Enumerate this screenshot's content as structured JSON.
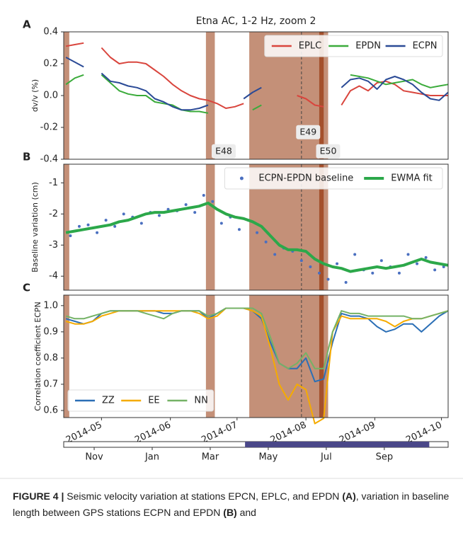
{
  "chart_data": [
    {
      "type": "line",
      "title": "Etna AC, 1-2 Hz, zoom 2",
      "panel": "A",
      "ylabel": "dv/v (%)",
      "xlim": [
        103,
        276
      ],
      "ylim": [
        -0.4,
        0.4
      ],
      "yticks": [
        0.4,
        0.2,
        {
          "value": 0,
          "label": "0.0"
        },
        -0.2,
        -0.4
      ],
      "legend": "upper right",
      "annotations": [
        "E48",
        "E49",
        "E50"
      ],
      "x": [
        104,
        108,
        112,
        116,
        120,
        124,
        128,
        132,
        136,
        140,
        144,
        148,
        152,
        156,
        160,
        164,
        168,
        172,
        176,
        180,
        184,
        188,
        192,
        196,
        200,
        204,
        208,
        212,
        216,
        220,
        224,
        228,
        232,
        236,
        240,
        244,
        248,
        252,
        256,
        260,
        264,
        268,
        272,
        276
      ],
      "series": [
        {
          "name": "EPLC",
          "color": "#d9453d",
          "values": [
            0.31,
            0.32,
            0.33,
            null,
            0.3,
            0.24,
            0.2,
            0.21,
            0.21,
            0.2,
            0.16,
            0.12,
            0.07,
            0.03,
            0.0,
            -0.02,
            -0.03,
            -0.05,
            -0.08,
            -0.07,
            -0.05,
            null,
            null,
            null,
            null,
            null,
            0.0,
            -0.02,
            -0.06,
            -0.07,
            null,
            -0.06,
            0.03,
            0.06,
            0.03,
            0.08,
            0.09,
            0.07,
            0.03,
            0.02,
            0.01,
            0.0,
            0.0,
            0.0
          ]
        },
        {
          "name": "EPDN",
          "color": "#3bab3b",
          "values": [
            0.07,
            0.11,
            0.13,
            null,
            0.13,
            0.08,
            0.03,
            0.01,
            0.0,
            0.0,
            -0.04,
            -0.05,
            -0.06,
            -0.09,
            -0.1,
            -0.1,
            -0.11,
            null,
            null,
            null,
            null,
            -0.09,
            -0.06,
            null,
            null,
            null,
            null,
            null,
            null,
            null,
            null,
            null,
            0.13,
            0.12,
            0.11,
            0.09,
            0.07,
            0.08,
            0.09,
            0.1,
            0.07,
            0.05,
            0.06,
            0.07
          ]
        },
        {
          "name": "ECPN",
          "color": "#2a4a96",
          "values": [
            0.24,
            0.21,
            0.18,
            null,
            0.14,
            0.09,
            0.08,
            0.06,
            0.05,
            0.03,
            -0.02,
            -0.04,
            -0.07,
            -0.09,
            -0.09,
            -0.08,
            -0.06,
            null,
            null,
            null,
            -0.02,
            0.02,
            0.05,
            null,
            null,
            null,
            null,
            null,
            null,
            null,
            null,
            0.05,
            0.1,
            0.11,
            0.09,
            0.04,
            0.1,
            0.12,
            0.1,
            0.07,
            0.02,
            -0.02,
            -0.03,
            0.02
          ]
        }
      ]
    },
    {
      "type": "line",
      "panel": "B",
      "ylabel": "Baseline variation (cm)",
      "xlim": [
        103,
        276
      ],
      "ylim": [
        -4.45,
        -0.4
      ],
      "yticks": [
        -1,
        -2,
        -3,
        -4
      ],
      "legend": "upper right",
      "x": [
        104,
        108,
        112,
        116,
        120,
        124,
        128,
        132,
        136,
        140,
        144,
        148,
        152,
        156,
        160,
        164,
        168,
        172,
        176,
        180,
        184,
        188,
        192,
        196,
        200,
        204,
        208,
        212,
        216,
        220,
        224,
        228,
        232,
        236,
        240,
        244,
        248,
        252,
        256,
        260,
        264,
        268,
        272,
        276
      ],
      "series": [
        {
          "name": "ECPN-EPDN baseline",
          "type": "scatter",
          "color": "#4a6fc0",
          "x": [
            106,
            110,
            114,
            118,
            122,
            126,
            130,
            134,
            138,
            142,
            146,
            150,
            154,
            158,
            162,
            166,
            170,
            174,
            178,
            182,
            186,
            190,
            194,
            198,
            202,
            206,
            210,
            214,
            218,
            222,
            226,
            230,
            234,
            238,
            242,
            246,
            250,
            254,
            258,
            262,
            266,
            270,
            274
          ],
          "values": [
            -2.7,
            -2.4,
            -2.35,
            -2.6,
            -2.2,
            -2.4,
            -2.0,
            -2.1,
            -2.3,
            -1.95,
            -2.05,
            -1.85,
            -1.9,
            -1.7,
            -1.95,
            -1.4,
            -1.6,
            -2.3,
            -2.1,
            -2.5,
            -2.2,
            -2.6,
            -2.9,
            -3.3,
            -3.1,
            -3.2,
            -3.5,
            -3.7,
            -3.9,
            -4.1,
            -3.6,
            -4.2,
            -3.3,
            -3.8,
            -3.9,
            -3.5,
            -3.7,
            -3.9,
            -3.3,
            -3.6,
            -3.4,
            -3.8,
            -3.7
          ]
        },
        {
          "name": "EWMA fit",
          "type": "line",
          "color": "#2ca84a",
          "width": 4,
          "values": [
            -2.6,
            -2.55,
            -2.5,
            -2.45,
            -2.4,
            -2.35,
            -2.25,
            -2.2,
            -2.1,
            -2.0,
            -1.95,
            -1.95,
            -1.9,
            -1.85,
            -1.8,
            -1.75,
            -1.65,
            -1.85,
            -2.0,
            -2.1,
            -2.15,
            -2.25,
            -2.4,
            -2.7,
            -3.0,
            -3.15,
            -3.15,
            -3.2,
            -3.45,
            -3.6,
            -3.7,
            -3.75,
            -3.85,
            -3.8,
            -3.75,
            -3.7,
            -3.75,
            -3.7,
            -3.65,
            -3.55,
            -3.45,
            -3.55,
            -3.6,
            -3.65
          ]
        }
      ]
    },
    {
      "type": "line",
      "panel": "C",
      "ylabel": "Correlation coefficient ECPN",
      "xlim": [
        103,
        276
      ],
      "ylim": [
        0.573,
        1.04
      ],
      "yticks": [
        {
          "value": 1,
          "label": "1.0"
        },
        0.9,
        0.8,
        0.7,
        0.6
      ],
      "legend": "lower left",
      "xticks": [
        {
          "value": 120,
          "label": "2014-05"
        },
        {
          "value": 151,
          "label": "2014-06"
        },
        {
          "value": 181,
          "label": "2014-07"
        },
        {
          "value": 212,
          "label": "2014-08"
        },
        {
          "value": 243,
          "label": "2014-09"
        },
        {
          "value": 273,
          "label": "2014-10"
        }
      ],
      "x": [
        104,
        108,
        112,
        116,
        120,
        124,
        128,
        132,
        136,
        140,
        144,
        148,
        152,
        156,
        160,
        164,
        168,
        172,
        176,
        180,
        184,
        188,
        192,
        196,
        200,
        204,
        208,
        212,
        216,
        220,
        224,
        228,
        232,
        236,
        240,
        244,
        248,
        252,
        256,
        260,
        264,
        268,
        272,
        276
      ],
      "series": [
        {
          "name": "ZZ",
          "color": "#2b6fb6",
          "values": [
            0.95,
            0.94,
            0.93,
            0.94,
            0.97,
            0.98,
            0.98,
            0.98,
            0.98,
            0.98,
            0.98,
            0.97,
            0.97,
            0.98,
            0.98,
            0.98,
            0.95,
            0.97,
            0.99,
            0.99,
            0.99,
            0.98,
            0.95,
            0.86,
            0.78,
            0.76,
            0.76,
            0.8,
            0.71,
            0.72,
            0.86,
            0.97,
            0.96,
            0.96,
            0.95,
            0.92,
            0.9,
            0.91,
            0.93,
            0.93,
            0.9,
            0.93,
            0.96,
            0.98
          ]
        },
        {
          "name": "EE",
          "color": "#f5ab00",
          "values": [
            0.94,
            0.93,
            0.93,
            0.94,
            0.96,
            0.97,
            0.98,
            0.98,
            0.98,
            0.98,
            0.98,
            0.98,
            0.98,
            0.98,
            0.98,
            0.97,
            0.95,
            0.96,
            0.99,
            0.99,
            0.99,
            0.98,
            0.96,
            0.84,
            0.7,
            0.64,
            0.7,
            0.68,
            0.55,
            0.57,
            0.9,
            0.96,
            0.95,
            0.95,
            0.95,
            0.95,
            0.94,
            0.92,
            0.94,
            0.95,
            0.95,
            0.96,
            0.97,
            0.98
          ]
        },
        {
          "name": "NN",
          "color": "#74b266",
          "values": [
            0.96,
            0.95,
            0.95,
            0.96,
            0.97,
            0.98,
            0.98,
            0.98,
            0.98,
            0.97,
            0.96,
            0.95,
            0.97,
            0.98,
            0.98,
            0.98,
            0.96,
            0.97,
            0.99,
            0.99,
            0.99,
            0.99,
            0.97,
            0.88,
            0.78,
            0.76,
            0.78,
            0.82,
            0.76,
            0.76,
            0.9,
            0.98,
            0.97,
            0.97,
            0.96,
            0.96,
            0.96,
            0.96,
            0.96,
            0.95,
            0.95,
            0.96,
            0.97,
            0.98
          ]
        }
      ]
    },
    {
      "type": "timeline",
      "xlim": [
        -1.05,
        12.2
      ],
      "highlight": [
        5.2,
        11.55
      ],
      "color": "#4a4788",
      "xticks": [
        {
          "value": 0,
          "label": "Nov"
        },
        {
          "value": 2,
          "label": "Jan"
        },
        {
          "value": 4,
          "label": "Mar"
        },
        {
          "value": 6,
          "label": "May"
        },
        {
          "value": 8,
          "label": "Jul"
        },
        {
          "value": 10,
          "label": "Sep"
        }
      ]
    }
  ],
  "events": {
    "spans": [
      [
        103,
        105.5
      ],
      [
        167,
        171
      ],
      [
        186.5,
        222
      ]
    ],
    "eruption": [
      218,
      220
    ],
    "marker": 210
  },
  "caption": [
    {
      "text": "FIGURE 4 |",
      "bold": true
    },
    {
      "text": " Seismic velocity variation at stations EPCN, EPLC, and EPDN "
    },
    {
      "text": "(A)",
      "bold": true
    },
    {
      "text": ", variation in baseline length between GPS stations ECPN and EPDN "
    },
    {
      "text": "(B)",
      "bold": true
    },
    {
      "text": " and"
    }
  ]
}
